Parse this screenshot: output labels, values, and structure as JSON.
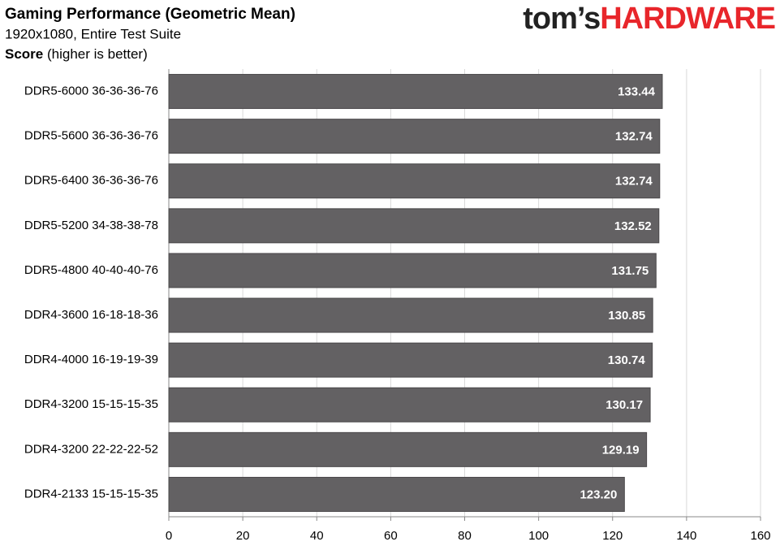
{
  "chart_data": {
    "type": "bar",
    "orientation": "horizontal",
    "title": "Gaming Performance (Geometric Mean)",
    "subtitle": "1920x1080, Entire Test Suite",
    "axis_label": "Score",
    "axis_note": "(higher is better)",
    "logo": [
      "tom’s",
      "HARDWARE"
    ],
    "categories": [
      "DDR5-6000 36-36-36-76",
      "DDR5-5600 36-36-36-76",
      "DDR5-6400 36-36-36-76",
      "DDR5-5200 34-38-38-78",
      "DDR5-4800 40-40-40-76",
      "DDR4-3600 16-18-18-36",
      "DDR4-4000 16-19-19-39",
      "DDR4-3200 15-15-15-35",
      "DDR4-3200 22-22-22-52",
      "DDR4-2133 15-15-15-35"
    ],
    "values": [
      133.44,
      132.74,
      132.74,
      132.52,
      131.75,
      130.85,
      130.74,
      130.17,
      129.19,
      123.2
    ],
    "value_labels": [
      "133.44",
      "132.74",
      "132.74",
      "132.52",
      "131.75",
      "130.85",
      "130.74",
      "130.17",
      "129.19",
      "123.20"
    ],
    "color": "#636163",
    "xlim": [
      0,
      160
    ],
    "xticks": [
      0,
      20,
      40,
      60,
      80,
      100,
      120,
      140,
      160
    ],
    "grid": true
  }
}
